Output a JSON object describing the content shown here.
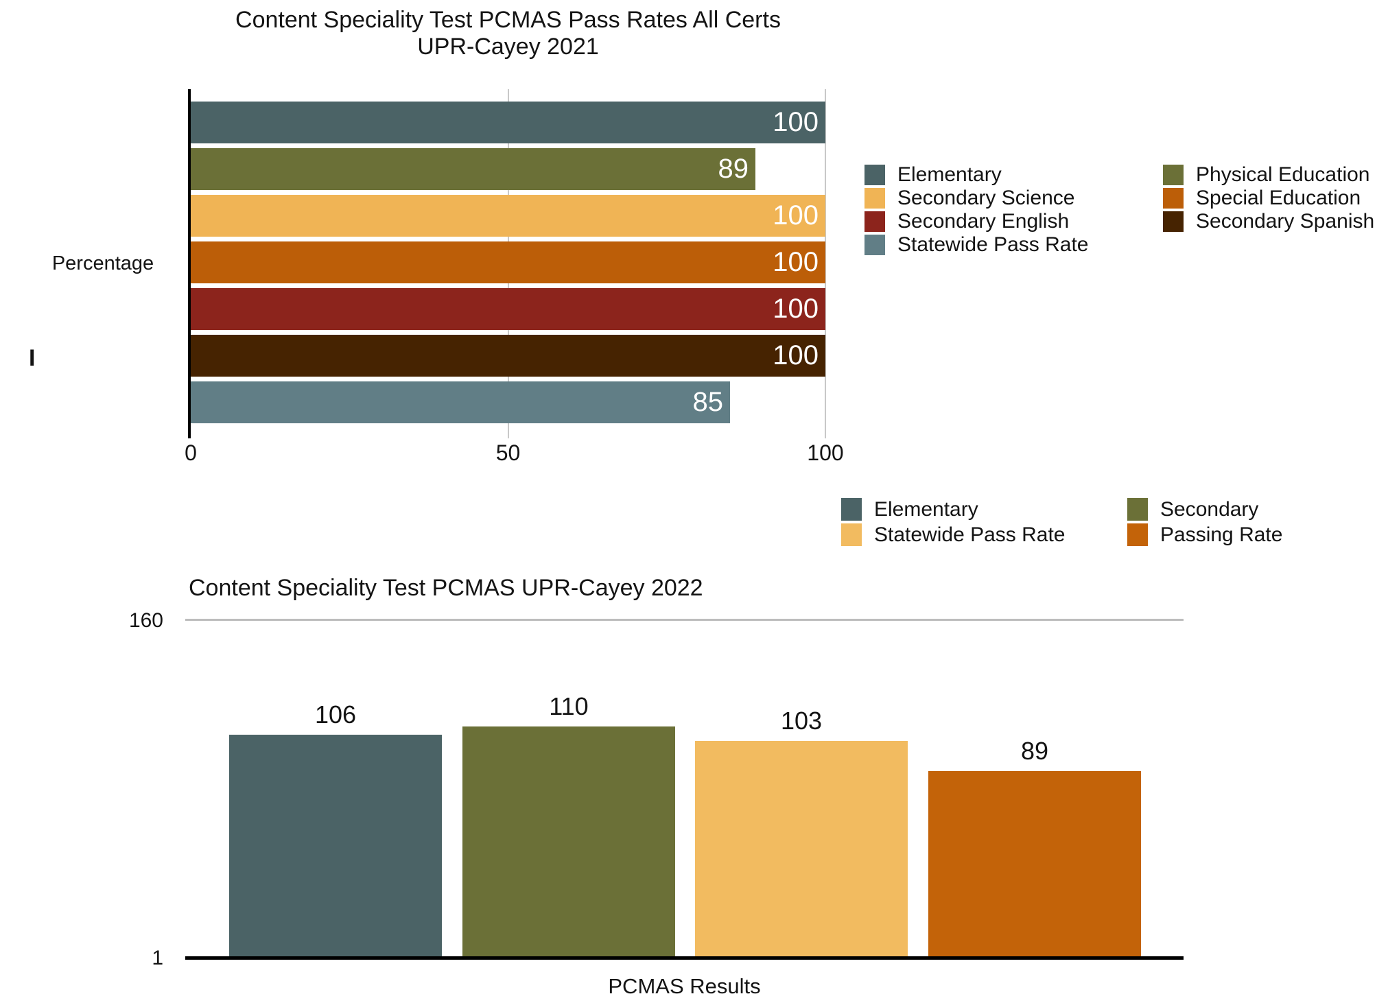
{
  "chart_data": [
    {
      "type": "bar",
      "orientation": "horizontal",
      "title": "Content Speciality Test PCMAS Pass Rates All Certs UPR-Cayey 2021",
      "title_lines": [
        "Content Speciality Test PCMAS Pass Rates All Certs",
        "UPR-Cayey 2021"
      ],
      "ylabel": "Percentage",
      "stray_axis_label": "I",
      "xlabel": "",
      "xlim": [
        0,
        100
      ],
      "x_ticks": [
        0,
        50,
        100
      ],
      "grid": true,
      "legend_position": "right-of-plot",
      "value_labels": "inside-end-white",
      "categories": [
        "Elementary",
        "Physical Education",
        "Secondary Science",
        "Special Education",
        "Secondary English",
        "Secondary Spanish",
        "Statewide Pass Rate"
      ],
      "series": [
        {
          "name": "Elementary",
          "value": 100,
          "color": "#4B6366"
        },
        {
          "name": "Physical Education",
          "value": 89,
          "color": "#6B7037"
        },
        {
          "name": "Secondary Science",
          "value": 100,
          "color": "#F0B455"
        },
        {
          "name": "Special Education",
          "value": 100,
          "color": "#BC5E08"
        },
        {
          "name": "Secondary English",
          "value": 100,
          "color": "#8C241C"
        },
        {
          "name": "Secondary Spanish",
          "value": 100,
          "color": "#462301"
        },
        {
          "name": "Statewide Pass Rate",
          "value": 85,
          "color": "#617E86"
        }
      ],
      "legend_columns": [
        [
          "Elementary",
          "Secondary Science",
          "Secondary English",
          "Statewide Pass Rate"
        ],
        [
          "Physical Education",
          "Special Education",
          "Secondary Spanish"
        ]
      ]
    },
    {
      "type": "bar",
      "orientation": "vertical",
      "title": "Content Speciality Test PCMAS UPR-Cayey 2022",
      "xlabel": "PCMAS Results",
      "ylim": [
        1,
        160
      ],
      "y_ticks": [
        160,
        1
      ],
      "grid": true,
      "legend_position": "above-top-right",
      "value_labels": "above-black",
      "categories": [
        "Elementary",
        "Secondary",
        "Statewide Pass Rate",
        "Passing Rate"
      ],
      "series": [
        {
          "name": "Elementary",
          "value": 106,
          "color": "#4B6366"
        },
        {
          "name": "Secondary",
          "value": 110,
          "color": "#6B7037"
        },
        {
          "name": "Statewide Pass Rate",
          "value": 103,
          "color": "#F2BB60"
        },
        {
          "name": "Passing Rate",
          "value": 89,
          "color": "#C36309"
        }
      ],
      "legend_columns": [
        [
          "Elementary",
          "Statewide Pass Rate"
        ],
        [
          "Secondary",
          "Passing Rate"
        ]
      ]
    }
  ]
}
